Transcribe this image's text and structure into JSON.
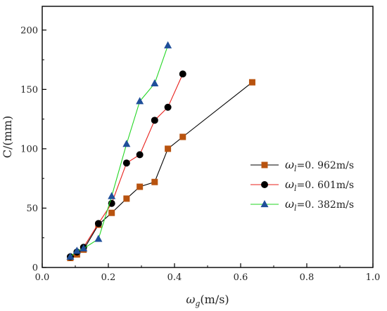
{
  "chart_data": {
    "type": "line",
    "xlim": [
      0.0,
      1.0
    ],
    "ylim": [
      0,
      220
    ],
    "xticks": [
      0.0,
      0.2,
      0.4,
      0.6,
      0.8,
      1.0
    ],
    "yticks": [
      0,
      50,
      100,
      150,
      200
    ],
    "x_tick_labels": [
      "0.0",
      "0.2",
      "0.4",
      "0.6",
      "0.8",
      "1.0"
    ],
    "y_tick_labels": [
      "0",
      "50",
      "100",
      "150",
      "200"
    ],
    "xlabel_symbol": "ω",
    "xlabel_sub": "g",
    "xlabel_unit": "(m/s)",
    "ylabel": "C/(mm)",
    "grid": false,
    "legend_position": "center-right",
    "series": [
      {
        "legend_symbol": "ω",
        "legend_sub": "l",
        "legend_value": "=0. 962m/s",
        "color": "#000000",
        "marker_color": "#b8530f",
        "marker": "square",
        "x": [
          0.085,
          0.105,
          0.125,
          0.17,
          0.21,
          0.255,
          0.295,
          0.34,
          0.38,
          0.425,
          0.635
        ],
        "y": [
          8,
          11,
          15,
          36,
          46,
          58,
          68,
          72,
          100,
          110,
          156
        ]
      },
      {
        "legend_symbol": "ω",
        "legend_sub": "l",
        "legend_value": "=0. 601m/s",
        "color": "#e8201b",
        "marker_color": "#000000",
        "marker": "circle",
        "x": [
          0.085,
          0.105,
          0.125,
          0.17,
          0.21,
          0.255,
          0.295,
          0.34,
          0.38,
          0.425
        ],
        "y": [
          9,
          13,
          17,
          37,
          54,
          88,
          95,
          124,
          135,
          163
        ]
      },
      {
        "legend_symbol": "ω",
        "legend_sub": "l",
        "legend_value": "=0. 382m/s",
        "color": "#22d622",
        "marker_color": "#1f4f9a",
        "marker": "triangle",
        "x": [
          0.085,
          0.105,
          0.125,
          0.17,
          0.21,
          0.255,
          0.295,
          0.34,
          0.38
        ],
        "y": [
          9,
          14,
          16,
          24,
          60,
          104,
          140,
          155,
          187
        ]
      }
    ]
  }
}
